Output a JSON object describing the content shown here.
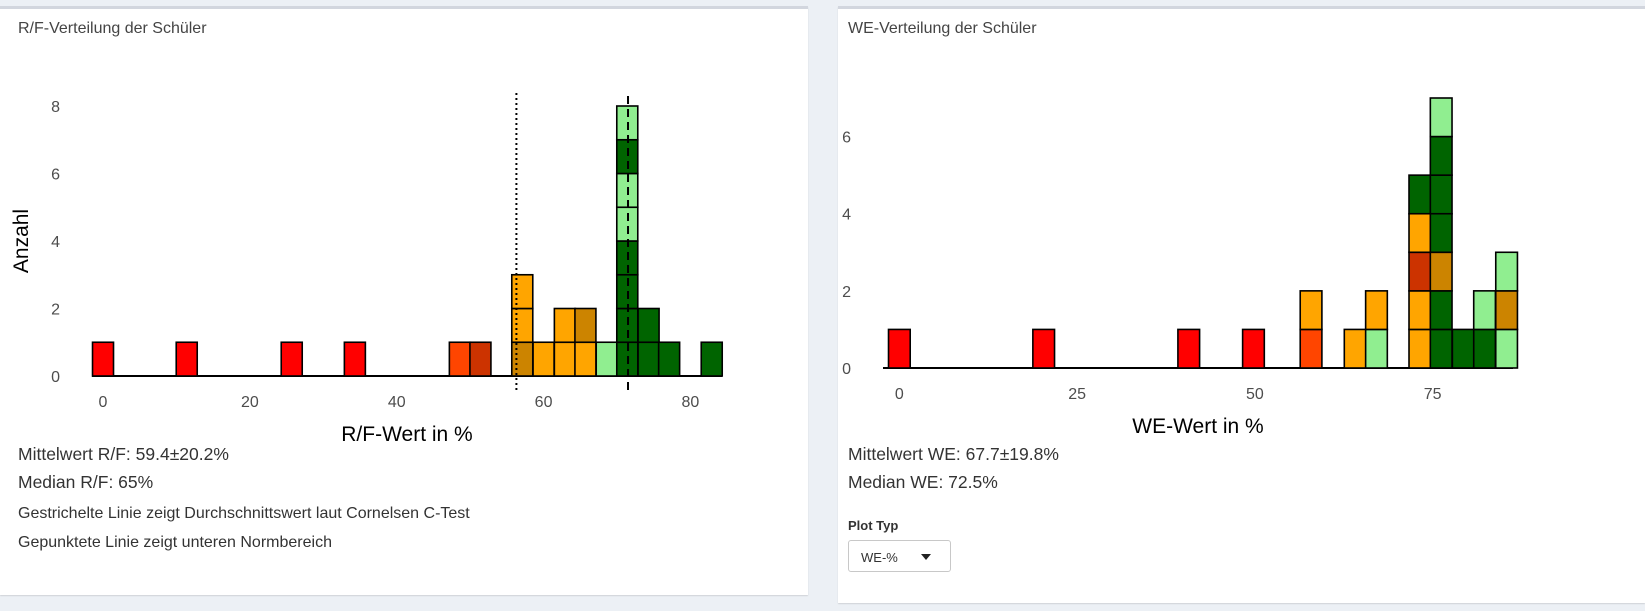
{
  "colors": {
    "red": "#ff0000",
    "orange_red": "#ff4500",
    "dark_orange_red": "#cc3300",
    "orange": "#ffa500",
    "dark_orange": "#cc8400",
    "light_green": "#90ee90",
    "dark_green": "#006400"
  },
  "left_panel": {
    "title": "R/F-Verteilung der Schüler",
    "mean_text": "Mittelwert R/F: 59.4±20.2%",
    "median_text": "Median R/F: 65%",
    "note_dashed": "Gestrichelte Linie zeigt Durchschnittswert laut Cornelsen C-Test",
    "note_dotted": "Gepunktete Linie zeigt unteren Normbereich"
  },
  "right_panel": {
    "title": "WE-Verteilung der Schüler",
    "mean_text": "Mittelwert WE: 67.7±19.8%",
    "median_text": "Median WE: 72.5%",
    "plot_type_label": "Plot Typ",
    "plot_type_value": "WE-%"
  },
  "chart_data": [
    {
      "type": "bar",
      "subtype": "stacked histogram",
      "xlabel": "R/F-Wert in %",
      "ylabel": "Anzahl",
      "xlim": [
        -1.5,
        84.3
      ],
      "ylim": [
        0,
        8
      ],
      "x_ticks": [
        0,
        20,
        40,
        60,
        80
      ],
      "y_ticks": [
        0,
        2,
        4,
        6,
        8
      ],
      "bin_width": 2.86,
      "vlines": [
        {
          "x": 56.3,
          "style": "dotted"
        },
        {
          "x": 71.5,
          "style": "dashed"
        }
      ],
      "bins": [
        {
          "x": 0,
          "stack": [
            "red"
          ]
        },
        {
          "x": 11.4,
          "stack": [
            "red"
          ]
        },
        {
          "x": 25.7,
          "stack": [
            "red"
          ]
        },
        {
          "x": 34.3,
          "stack": [
            "red"
          ]
        },
        {
          "x": 48.6,
          "stack": [
            "orange_red"
          ]
        },
        {
          "x": 51.4,
          "stack": [
            "dark_orange_red"
          ]
        },
        {
          "x": 57.1,
          "stack": [
            "dark_orange",
            "orange",
            "orange"
          ]
        },
        {
          "x": 60.0,
          "stack": [
            "orange"
          ]
        },
        {
          "x": 62.9,
          "stack": [
            "orange",
            "orange"
          ]
        },
        {
          "x": 65.7,
          "stack": [
            "orange",
            "dark_orange"
          ]
        },
        {
          "x": 68.6,
          "stack": [
            "light_green"
          ]
        },
        {
          "x": 71.4,
          "stack": [
            "dark_green",
            "dark_green",
            "dark_green",
            "dark_green",
            "light_green",
            "light_green",
            "dark_green",
            "light_green"
          ]
        },
        {
          "x": 74.3,
          "stack": [
            "dark_green",
            "dark_green"
          ]
        },
        {
          "x": 77.1,
          "stack": [
            "dark_green"
          ]
        },
        {
          "x": 82.9,
          "stack": [
            "dark_green"
          ]
        }
      ]
    },
    {
      "type": "bar",
      "subtype": "stacked histogram",
      "xlabel": "WE-Wert in %",
      "ylabel": "Anzahl",
      "xlim": [
        -2.3,
        86.3
      ],
      "ylim": [
        0,
        7
      ],
      "x_ticks": [
        0,
        25,
        50,
        75
      ],
      "y_ticks": [
        0,
        2,
        4,
        6
      ],
      "bin_width": 3.05,
      "bins": [
        {
          "x": 0,
          "stack": [
            "red"
          ]
        },
        {
          "x": 20.3,
          "stack": [
            "red"
          ]
        },
        {
          "x": 40.7,
          "stack": [
            "red"
          ]
        },
        {
          "x": 49.8,
          "stack": [
            "red"
          ]
        },
        {
          "x": 57.9,
          "stack": [
            "orange_red",
            "orange"
          ]
        },
        {
          "x": 64.1,
          "stack": [
            "orange"
          ]
        },
        {
          "x": 67.1,
          "stack": [
            "light_green",
            "orange"
          ]
        },
        {
          "x": 73.2,
          "stack": [
            "orange",
            "orange",
            "dark_orange_red",
            "orange",
            "dark_green"
          ]
        },
        {
          "x": 76.2,
          "stack": [
            "dark_green",
            "dark_green",
            "dark_orange",
            "dark_green",
            "dark_green",
            "dark_green",
            "light_green"
          ]
        },
        {
          "x": 79.3,
          "stack": [
            "dark_green"
          ]
        },
        {
          "x": 82.3,
          "stack": [
            "dark_green",
            "light_green"
          ]
        },
        {
          "x": 85.4,
          "stack": [
            "light_green",
            "dark_orange",
            "light_green"
          ]
        }
      ]
    }
  ]
}
